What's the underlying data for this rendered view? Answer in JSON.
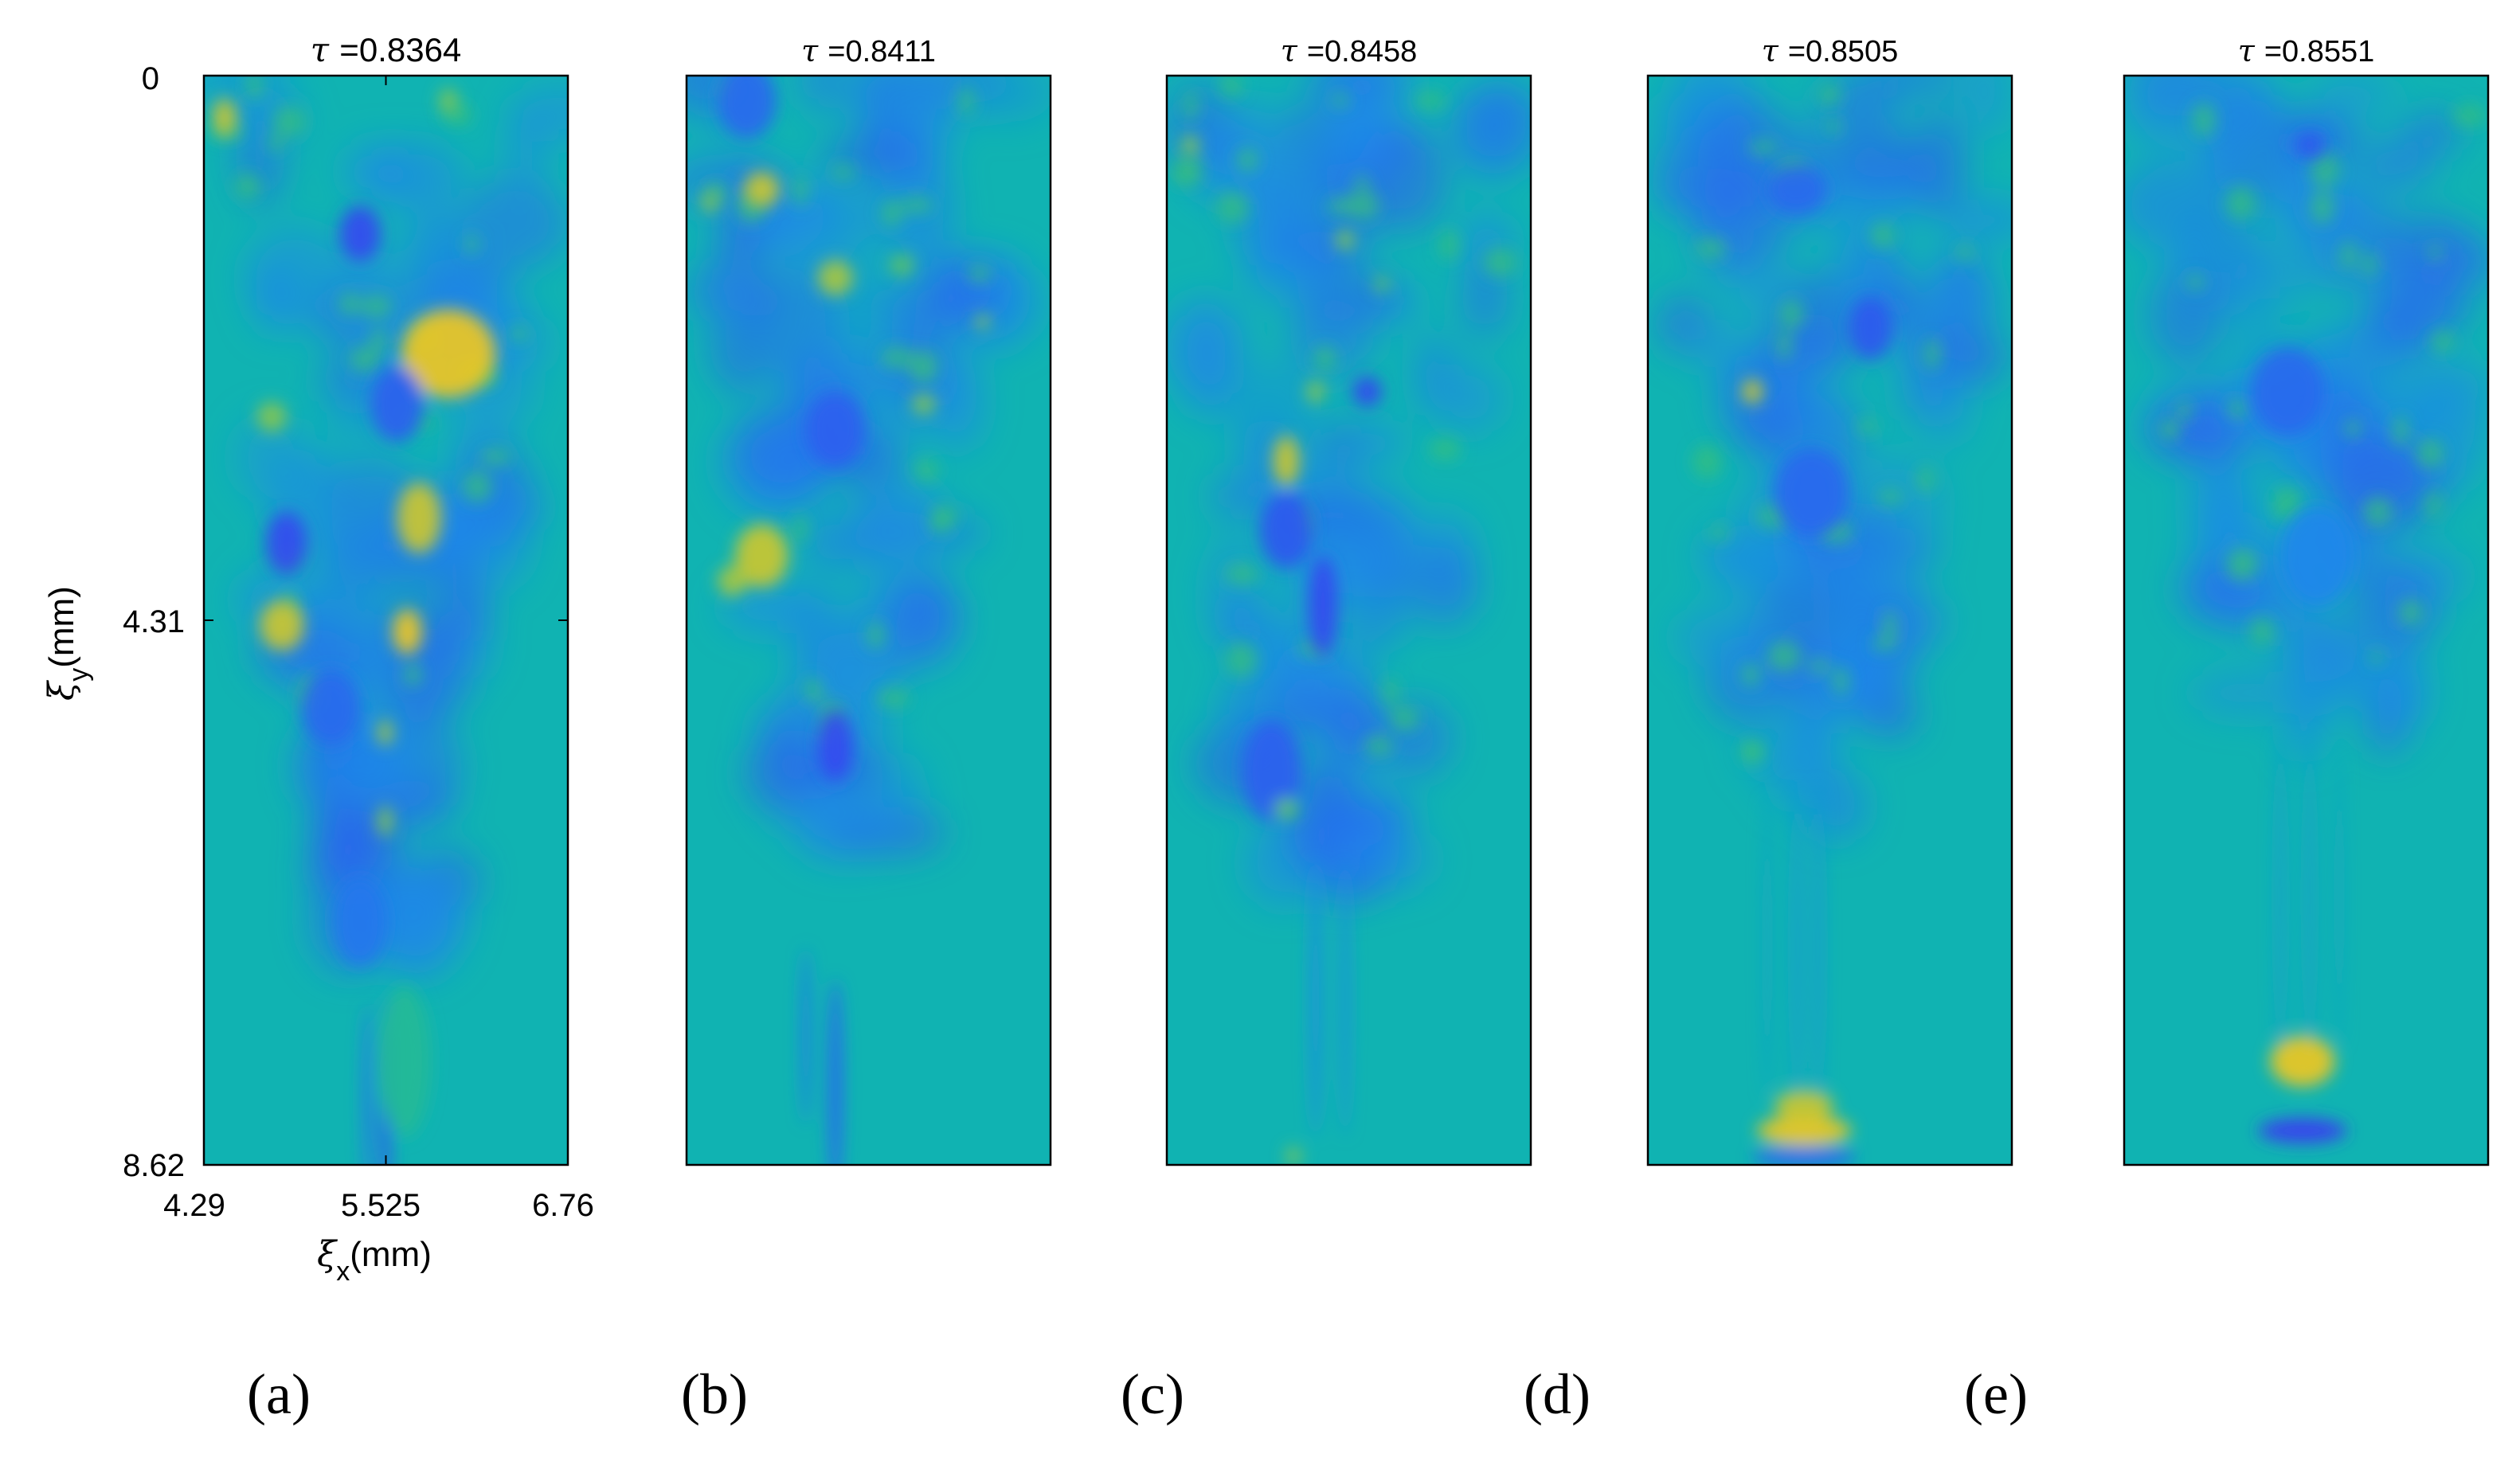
{
  "chart_data": {
    "type": "heatmap",
    "colormap": [
      "#3a3af2",
      "#1f86ec",
      "#10b3b2",
      "#3fc46b",
      "#f2c81e"
    ],
    "background_level": 0.5,
    "x_axis": {
      "label": "ξ",
      "label_sub": "x",
      "label_unit": "(mm)",
      "ticks": [
        "4.29",
        "5.525",
        "6.76"
      ],
      "range": [
        4.29,
        6.76
      ]
    },
    "y_axis": {
      "label": "ξ",
      "label_sub": "y",
      "label_unit": "(mm)",
      "ticks": [
        "0",
        "4.31",
        "8.62"
      ],
      "range": [
        0,
        8.62
      ],
      "inverted": true
    },
    "panels": [
      {
        "label": "(a)",
        "title_symbol": "τ",
        "title_value": "=0.8364",
        "tau": 0.8364,
        "features": [
          {
            "x": 5.525,
            "y": 8.15,
            "level": 0.12,
            "rx": 0.04,
            "ry": 0.85
          },
          {
            "x": 5.4,
            "y": 8.1,
            "level": 0.18,
            "rx": 0.03,
            "ry": 0.75
          },
          {
            "x": 5.65,
            "y": 7.8,
            "level": 0.6,
            "rx": 0.18,
            "ry": 0.6
          },
          {
            "x": 5.52,
            "y": 5.9,
            "level": 0.85,
            "rx": 0.05,
            "ry": 0.12
          },
          {
            "x": 5.52,
            "y": 5.2,
            "level": 0.9,
            "rx": 0.05,
            "ry": 0.1
          },
          {
            "x": 4.82,
            "y": 4.35,
            "level": 0.95,
            "rx": 0.15,
            "ry": 0.2
          },
          {
            "x": 5.67,
            "y": 4.4,
            "level": 1.0,
            "rx": 0.1,
            "ry": 0.18
          },
          {
            "x": 5.75,
            "y": 3.5,
            "level": 0.95,
            "rx": 0.15,
            "ry": 0.28
          },
          {
            "x": 4.85,
            "y": 3.7,
            "level": 0.05,
            "rx": 0.14,
            "ry": 0.25
          },
          {
            "x": 5.95,
            "y": 2.2,
            "level": 1.0,
            "rx": 0.32,
            "ry": 0.35
          },
          {
            "x": 4.75,
            "y": 2.7,
            "level": 0.85,
            "rx": 0.1,
            "ry": 0.12
          },
          {
            "x": 5.35,
            "y": 1.25,
            "level": 0.05,
            "rx": 0.14,
            "ry": 0.22
          },
          {
            "x": 4.43,
            "y": 0.33,
            "level": 0.95,
            "rx": 0.08,
            "ry": 0.15
          },
          {
            "x": 5.95,
            "y": 0.2,
            "level": 0.85,
            "rx": 0.06,
            "ry": 0.1
          },
          {
            "x": 5.6,
            "y": 2.6,
            "level": 0.12,
            "rx": 0.18,
            "ry": 0.3
          },
          {
            "x": 5.15,
            "y": 5.0,
            "level": 0.15,
            "rx": 0.2,
            "ry": 0.3
          },
          {
            "x": 5.35,
            "y": 6.7,
            "level": 0.2,
            "rx": 0.18,
            "ry": 0.35
          }
        ],
        "turbulent_region": {
          "top": 0.0,
          "bottom": 6.8,
          "x_top": [
            4.29,
            6.76
          ],
          "x_bottom": [
            5.1,
            5.9
          ]
        }
      },
      {
        "label": "(b)",
        "title_symbol": "τ",
        "title_value": "=0.8411",
        "tau": 0.8411,
        "features": [
          {
            "x": 5.3,
            "y": 8.0,
            "level": 0.15,
            "rx": 0.05,
            "ry": 0.85
          },
          {
            "x": 5.1,
            "y": 7.6,
            "level": 0.2,
            "rx": 0.03,
            "ry": 0.7
          },
          {
            "x": 5.3,
            "y": 5.3,
            "level": 0.05,
            "rx": 0.12,
            "ry": 0.28
          },
          {
            "x": 4.8,
            "y": 3.8,
            "level": 0.95,
            "rx": 0.18,
            "ry": 0.25
          },
          {
            "x": 4.6,
            "y": 4.0,
            "level": 0.9,
            "rx": 0.1,
            "ry": 0.12
          },
          {
            "x": 4.8,
            "y": 0.9,
            "level": 0.95,
            "rx": 0.12,
            "ry": 0.14
          },
          {
            "x": 4.45,
            "y": 1.0,
            "level": 0.85,
            "rx": 0.06,
            "ry": 0.08
          },
          {
            "x": 5.3,
            "y": 1.6,
            "level": 0.9,
            "rx": 0.12,
            "ry": 0.14
          },
          {
            "x": 5.75,
            "y": 1.5,
            "level": 0.8,
            "rx": 0.08,
            "ry": 0.08
          },
          {
            "x": 5.9,
            "y": 2.6,
            "level": 0.85,
            "rx": 0.08,
            "ry": 0.08
          },
          {
            "x": 6.3,
            "y": 1.95,
            "level": 0.85,
            "rx": 0.05,
            "ry": 0.06
          },
          {
            "x": 4.7,
            "y": 0.2,
            "level": 0.15,
            "rx": 0.2,
            "ry": 0.3
          },
          {
            "x": 5.3,
            "y": 2.8,
            "level": 0.12,
            "rx": 0.2,
            "ry": 0.3
          }
        ],
        "turbulent_region": {
          "top": 0.0,
          "bottom": 6.2,
          "x_top": [
            4.29,
            6.76
          ],
          "x_bottom": [
            5.0,
            5.7
          ]
        }
      },
      {
        "label": "(c)",
        "title_symbol": "τ",
        "title_value": "=0.8458",
        "tau": 0.8458,
        "features": [
          {
            "x": 5.3,
            "y": 7.3,
            "level": 0.3,
            "rx": 0.04,
            "ry": 1.1
          },
          {
            "x": 5.5,
            "y": 7.3,
            "level": 0.3,
            "rx": 0.03,
            "ry": 1.1
          },
          {
            "x": 5.35,
            "y": 4.2,
            "level": 0.05,
            "rx": 0.1,
            "ry": 0.4
          },
          {
            "x": 5.1,
            "y": 3.6,
            "level": 0.1,
            "rx": 0.18,
            "ry": 0.3
          },
          {
            "x": 5.0,
            "y": 5.5,
            "level": 0.12,
            "rx": 0.2,
            "ry": 0.4
          },
          {
            "x": 5.1,
            "y": 3.05,
            "level": 0.95,
            "rx": 0.09,
            "ry": 0.2
          },
          {
            "x": 5.3,
            "y": 2.5,
            "level": 0.85,
            "rx": 0.06,
            "ry": 0.09
          },
          {
            "x": 5.5,
            "y": 1.3,
            "level": 0.85,
            "rx": 0.06,
            "ry": 0.08
          },
          {
            "x": 5.75,
            "y": 1.65,
            "level": 0.8,
            "rx": 0.05,
            "ry": 0.06
          },
          {
            "x": 4.45,
            "y": 0.55,
            "level": 0.85,
            "rx": 0.06,
            "ry": 0.08
          },
          {
            "x": 5.1,
            "y": 5.8,
            "level": 0.8,
            "rx": 0.08,
            "ry": 0.08
          },
          {
            "x": 5.15,
            "y": 8.55,
            "level": 0.85,
            "rx": 0.05,
            "ry": 0.07
          },
          {
            "x": 5.65,
            "y": 2.5,
            "level": 0.05,
            "rx": 0.1,
            "ry": 0.12
          }
        ],
        "turbulent_region": {
          "top": 0.0,
          "bottom": 6.4,
          "x_top": [
            4.29,
            6.76
          ],
          "x_bottom": [
            4.9,
            5.9
          ]
        }
      },
      {
        "label": "(d)",
        "title_symbol": "τ",
        "title_value": "=0.8505",
        "tau": 0.8505,
        "features": [
          {
            "x": 5.3,
            "y": 6.9,
            "level": 0.35,
            "rx": 0.03,
            "ry": 1.3
          },
          {
            "x": 5.45,
            "y": 6.9,
            "level": 0.35,
            "rx": 0.03,
            "ry": 1.3
          },
          {
            "x": 5.1,
            "y": 6.9,
            "level": 0.38,
            "rx": 0.02,
            "ry": 1.2
          },
          {
            "x": 5.35,
            "y": 8.35,
            "level": 1.0,
            "rx": 0.32,
            "ry": 0.12
          },
          {
            "x": 5.35,
            "y": 8.15,
            "level": 0.95,
            "rx": 0.2,
            "ry": 0.12
          },
          {
            "x": 5.35,
            "y": 8.56,
            "level": 0.15,
            "rx": 0.35,
            "ry": 0.08
          },
          {
            "x": 5.0,
            "y": 2.5,
            "level": 0.95,
            "rx": 0.07,
            "ry": 0.1
          },
          {
            "x": 5.0,
            "y": 5.35,
            "level": 0.7,
            "rx": 0.08,
            "ry": 0.09
          },
          {
            "x": 5.8,
            "y": 2.0,
            "level": 0.1,
            "rx": 0.15,
            "ry": 0.25
          },
          {
            "x": 5.4,
            "y": 3.3,
            "level": 0.15,
            "rx": 0.25,
            "ry": 0.35
          },
          {
            "x": 5.3,
            "y": 0.9,
            "level": 0.15,
            "rx": 0.2,
            "ry": 0.2
          },
          {
            "x": 5.55,
            "y": 0.4,
            "level": 0.7,
            "rx": 0.04,
            "ry": 0.05
          }
        ],
        "turbulent_region": {
          "top": 0.0,
          "bottom": 5.8,
          "x_top": [
            4.29,
            6.76
          ],
          "x_bottom": [
            5.0,
            5.9
          ]
        }
      },
      {
        "label": "(e)",
        "title_symbol": "τ",
        "title_value": "=0.8551",
        "tau": 0.8551,
        "features": [
          {
            "x": 5.35,
            "y": 6.5,
            "level": 0.38,
            "rx": 0.03,
            "ry": 1.3
          },
          {
            "x": 5.55,
            "y": 6.5,
            "level": 0.38,
            "rx": 0.03,
            "ry": 1.3
          },
          {
            "x": 5.75,
            "y": 6.5,
            "level": 0.4,
            "rx": 0.02,
            "ry": 1.2
          },
          {
            "x": 5.5,
            "y": 7.8,
            "level": 1.0,
            "rx": 0.22,
            "ry": 0.2
          },
          {
            "x": 5.5,
            "y": 8.35,
            "level": 0.0,
            "rx": 0.3,
            "ry": 0.1
          },
          {
            "x": 5.55,
            "y": 0.55,
            "level": 0.1,
            "rx": 0.1,
            "ry": 0.1
          },
          {
            "x": 5.4,
            "y": 2.5,
            "level": 0.15,
            "rx": 0.25,
            "ry": 0.35
          },
          {
            "x": 5.6,
            "y": 3.8,
            "level": 0.25,
            "rx": 0.25,
            "ry": 0.4
          },
          {
            "x": 6.4,
            "y": 1.4,
            "level": 0.7,
            "rx": 0.04,
            "ry": 0.05
          },
          {
            "x": 4.6,
            "y": 2.8,
            "level": 0.7,
            "rx": 0.06,
            "ry": 0.07
          }
        ],
        "turbulent_region": {
          "top": 0.0,
          "bottom": 5.5,
          "x_top": [
            4.29,
            6.76
          ],
          "x_bottom": [
            5.1,
            6.2
          ]
        }
      }
    ]
  }
}
